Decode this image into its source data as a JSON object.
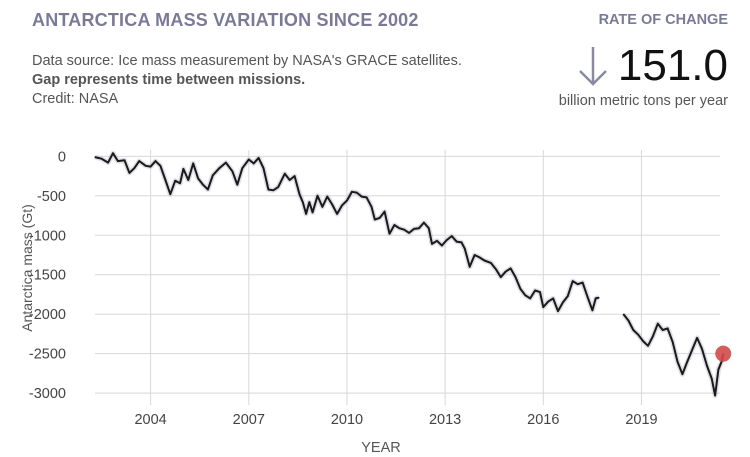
{
  "header": {
    "title": "ANTARCTICA MASS VARIATION SINCE 2002",
    "source_line1": "Data source: Ice mass measurement by NASA's GRACE satellites.",
    "source_line2": "Gap represents time between missions.",
    "source_line3": "Credit: NASA"
  },
  "rate": {
    "label": "RATE OF CHANGE",
    "value": "151.0",
    "unit": "billion metric tons per year",
    "direction_icon": "down-arrow-icon"
  },
  "colors": {
    "line": "#1a1a1a",
    "grid": "#d8d8d8",
    "marker": "#d24a4a",
    "band": "#c8c8d4",
    "title": "#7a7a98"
  },
  "chart_data": {
    "type": "line",
    "xlabel": "YEAR",
    "ylabel": "Antarctica mass (Gt)",
    "xlim": [
      2002.3,
      2021.4
    ],
    "ylim": [
      -3150,
      80
    ],
    "xticks": [
      2004,
      2007,
      2010,
      2013,
      2016,
      2019
    ],
    "yticks": [
      0,
      -500,
      -1000,
      -1500,
      -2000,
      -2500,
      -3000
    ],
    "grid": true,
    "series": [
      {
        "points": [
          [
            2002.3,
            -10
          ],
          [
            2002.5,
            -30
          ],
          [
            2002.7,
            -80
          ],
          [
            2002.85,
            40
          ],
          [
            2003.0,
            -60
          ],
          [
            2003.2,
            -50
          ],
          [
            2003.35,
            -210
          ],
          [
            2003.5,
            -150
          ],
          [
            2003.65,
            -60
          ],
          [
            2003.85,
            -120
          ],
          [
            2004.0,
            -130
          ],
          [
            2004.15,
            -60
          ],
          [
            2004.3,
            -120
          ],
          [
            2004.45,
            -300
          ],
          [
            2004.6,
            -480
          ],
          [
            2004.75,
            -310
          ],
          [
            2004.9,
            -340
          ],
          [
            2005.0,
            -160
          ],
          [
            2005.15,
            -300
          ],
          [
            2005.3,
            -90
          ],
          [
            2005.45,
            -280
          ],
          [
            2005.6,
            -360
          ],
          [
            2005.75,
            -420
          ],
          [
            2005.9,
            -240
          ],
          [
            2006.1,
            -150
          ],
          [
            2006.3,
            -80
          ],
          [
            2006.5,
            -190
          ],
          [
            2006.65,
            -360
          ],
          [
            2006.8,
            -150
          ],
          [
            2007.0,
            -40
          ],
          [
            2007.15,
            -90
          ],
          [
            2007.3,
            -20
          ],
          [
            2007.45,
            -150
          ],
          [
            2007.6,
            -420
          ],
          [
            2007.75,
            -430
          ],
          [
            2007.9,
            -390
          ],
          [
            2008.1,
            -220
          ],
          [
            2008.25,
            -300
          ],
          [
            2008.4,
            -250
          ],
          [
            2008.55,
            -480
          ],
          [
            2008.65,
            -580
          ],
          [
            2008.75,
            -730
          ],
          [
            2008.85,
            -580
          ],
          [
            2008.95,
            -710
          ],
          [
            2009.1,
            -500
          ],
          [
            2009.25,
            -640
          ],
          [
            2009.4,
            -510
          ],
          [
            2009.55,
            -610
          ],
          [
            2009.7,
            -730
          ],
          [
            2009.85,
            -620
          ],
          [
            2010.0,
            -560
          ],
          [
            2010.15,
            -450
          ],
          [
            2010.3,
            -460
          ],
          [
            2010.45,
            -510
          ],
          [
            2010.6,
            -520
          ],
          [
            2010.75,
            -640
          ],
          [
            2010.85,
            -800
          ],
          [
            2011.0,
            -780
          ],
          [
            2011.15,
            -700
          ],
          [
            2011.3,
            -980
          ],
          [
            2011.45,
            -870
          ],
          [
            2011.6,
            -910
          ],
          [
            2011.75,
            -930
          ],
          [
            2011.9,
            -970
          ],
          [
            2012.05,
            -920
          ],
          [
            2012.2,
            -910
          ],
          [
            2012.35,
            -840
          ],
          [
            2012.5,
            -910
          ],
          [
            2012.6,
            -1110
          ],
          [
            2012.75,
            -1070
          ],
          [
            2012.9,
            -1130
          ],
          [
            2013.05,
            -1060
          ],
          [
            2013.2,
            -1010
          ],
          [
            2013.35,
            -1080
          ],
          [
            2013.5,
            -1090
          ],
          [
            2013.6,
            -1170
          ],
          [
            2013.75,
            -1400
          ],
          [
            2013.9,
            -1250
          ],
          [
            2014.05,
            -1280
          ],
          [
            2014.2,
            -1320
          ],
          [
            2014.4,
            -1350
          ],
          [
            2014.55,
            -1430
          ],
          [
            2014.7,
            -1530
          ],
          [
            2014.85,
            -1460
          ],
          [
            2015.0,
            -1420
          ],
          [
            2015.15,
            -1530
          ],
          [
            2015.3,
            -1680
          ],
          [
            2015.45,
            -1760
          ],
          [
            2015.6,
            -1800
          ],
          [
            2015.75,
            -1700
          ],
          [
            2015.9,
            -1720
          ],
          [
            2016.0,
            -1910
          ],
          [
            2016.15,
            -1840
          ],
          [
            2016.3,
            -1800
          ],
          [
            2016.45,
            -1960
          ],
          [
            2016.6,
            -1850
          ],
          [
            2016.75,
            -1770
          ],
          [
            2016.9,
            -1580
          ],
          [
            2017.05,
            -1620
          ],
          [
            2017.2,
            -1600
          ],
          [
            2017.35,
            -1780
          ],
          [
            2017.5,
            -1950
          ],
          [
            2017.6,
            -1800
          ],
          [
            2017.7,
            -1790
          ],
          null,
          [
            2018.45,
            -2000
          ],
          [
            2018.6,
            -2080
          ],
          [
            2018.75,
            -2200
          ],
          [
            2018.9,
            -2260
          ],
          [
            2019.05,
            -2340
          ],
          [
            2019.2,
            -2400
          ],
          [
            2019.35,
            -2280
          ],
          [
            2019.5,
            -2120
          ],
          [
            2019.65,
            -2200
          ],
          [
            2019.8,
            -2180
          ],
          [
            2019.95,
            -2350
          ],
          [
            2020.1,
            -2600
          ],
          [
            2020.25,
            -2760
          ],
          [
            2020.4,
            -2600
          ],
          [
            2020.55,
            -2450
          ],
          [
            2020.7,
            -2300
          ],
          [
            2020.85,
            -2440
          ],
          [
            2021.0,
            -2650
          ],
          [
            2021.15,
            -2820
          ],
          [
            2021.25,
            -3030
          ],
          [
            2021.35,
            -2700
          ],
          [
            2021.45,
            -2600
          ],
          [
            2021.5,
            -2500
          ]
        ]
      }
    ],
    "latest_point": [
      2021.5,
      -2500
    ]
  }
}
